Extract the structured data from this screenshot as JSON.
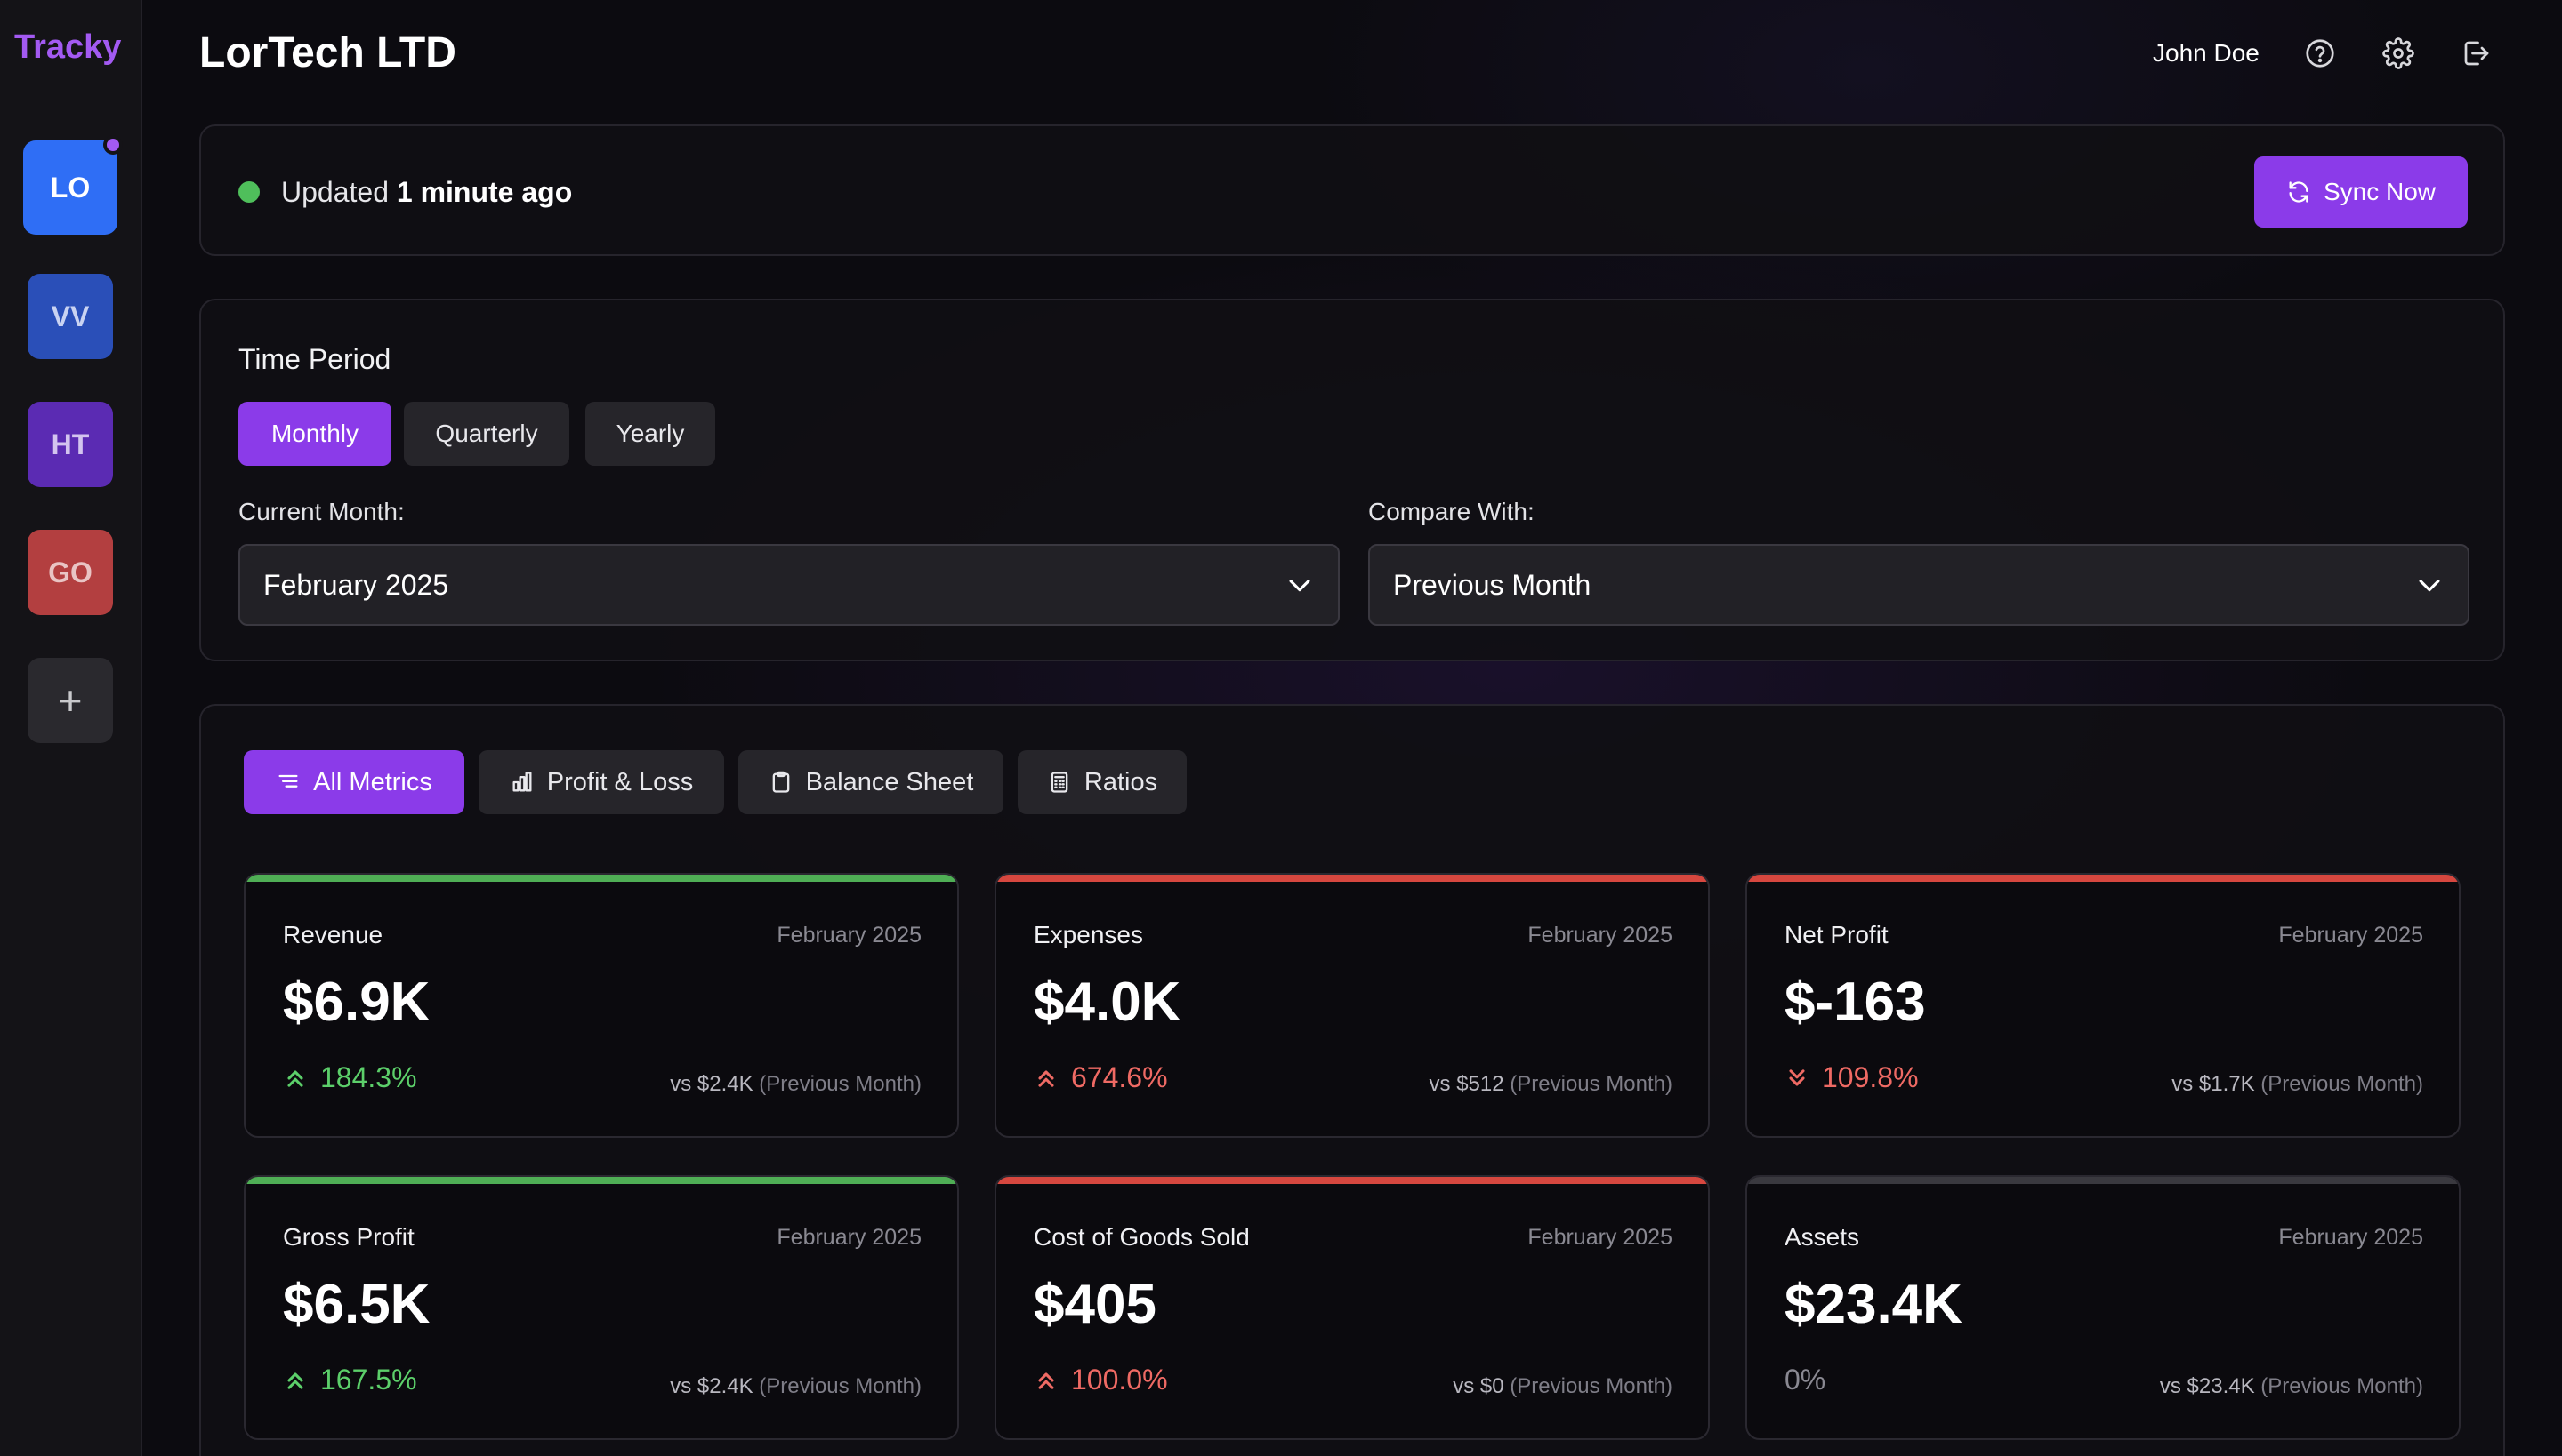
{
  "sidebar": {
    "brand": "Tracky",
    "workspaces": [
      {
        "initials": "LO",
        "color": "#2f6ef5",
        "active": true,
        "has_notification": true
      },
      {
        "initials": "VV",
        "color": "#2a4fb8"
      },
      {
        "initials": "HT",
        "color": "#5b2bb3"
      },
      {
        "initials": "GO",
        "color": "#b33f40"
      }
    ],
    "add_label": "+"
  },
  "header": {
    "title": "LorTech LTD",
    "user_name": "John Doe",
    "icons": [
      "help-icon",
      "settings-icon",
      "logout-icon"
    ]
  },
  "status": {
    "prefix": "Updated",
    "time": "1 minute ago",
    "indicator_color": "#4fbf5b",
    "sync_label": "Sync Now"
  },
  "time_period": {
    "title": "Time Period",
    "options": [
      "Monthly",
      "Quarterly",
      "Yearly"
    ],
    "selected": "Monthly",
    "current_label": "Current Month:",
    "current_value": "February 2025",
    "compare_label": "Compare With:",
    "compare_value": "Previous Month"
  },
  "metric_tabs": [
    {
      "label": "All Metrics",
      "icon": "list-icon",
      "active": true
    },
    {
      "label": "Profit & Loss",
      "icon": "bar-chart-icon"
    },
    {
      "label": "Balance Sheet",
      "icon": "clipboard-icon"
    },
    {
      "label": "Ratios",
      "icon": "calculator-icon"
    }
  ],
  "cards": [
    {
      "title": "Revenue",
      "date": "February 2025",
      "value": "$6.9K",
      "change": "184.3%",
      "trend": "up-good",
      "vs": "vs $2.4K",
      "vs_note": "(Previous Month)",
      "bar_color": "#4fae55"
    },
    {
      "title": "Expenses",
      "date": "February 2025",
      "value": "$4.0K",
      "change": "674.6%",
      "trend": "up-bad",
      "vs": "vs $512",
      "vs_note": "(Previous Month)",
      "bar_color": "#d6473f"
    },
    {
      "title": "Net Profit",
      "date": "February 2025",
      "value": "$-163",
      "change": "109.8%",
      "trend": "down-bad",
      "vs": "vs $1.7K",
      "vs_note": "(Previous Month)",
      "bar_color": "#d6473f"
    },
    {
      "title": "Gross Profit",
      "date": "February 2025",
      "value": "$6.5K",
      "change": "167.5%",
      "trend": "up-good",
      "vs": "vs $2.4K",
      "vs_note": "(Previous Month)",
      "bar_color": "#4fae55"
    },
    {
      "title": "Cost of Goods Sold",
      "date": "February 2025",
      "value": "$405",
      "change": "100.0%",
      "trend": "up-bad",
      "vs": "vs $0",
      "vs_note": "(Previous Month)",
      "bar_color": "#d6473f"
    },
    {
      "title": "Assets",
      "date": "February 2025",
      "value": "$23.4K",
      "change": "0%",
      "trend": "flat",
      "vs": "vs $23.4K",
      "vs_note": "(Previous Month)",
      "bar_color": "#3a393f"
    }
  ]
}
